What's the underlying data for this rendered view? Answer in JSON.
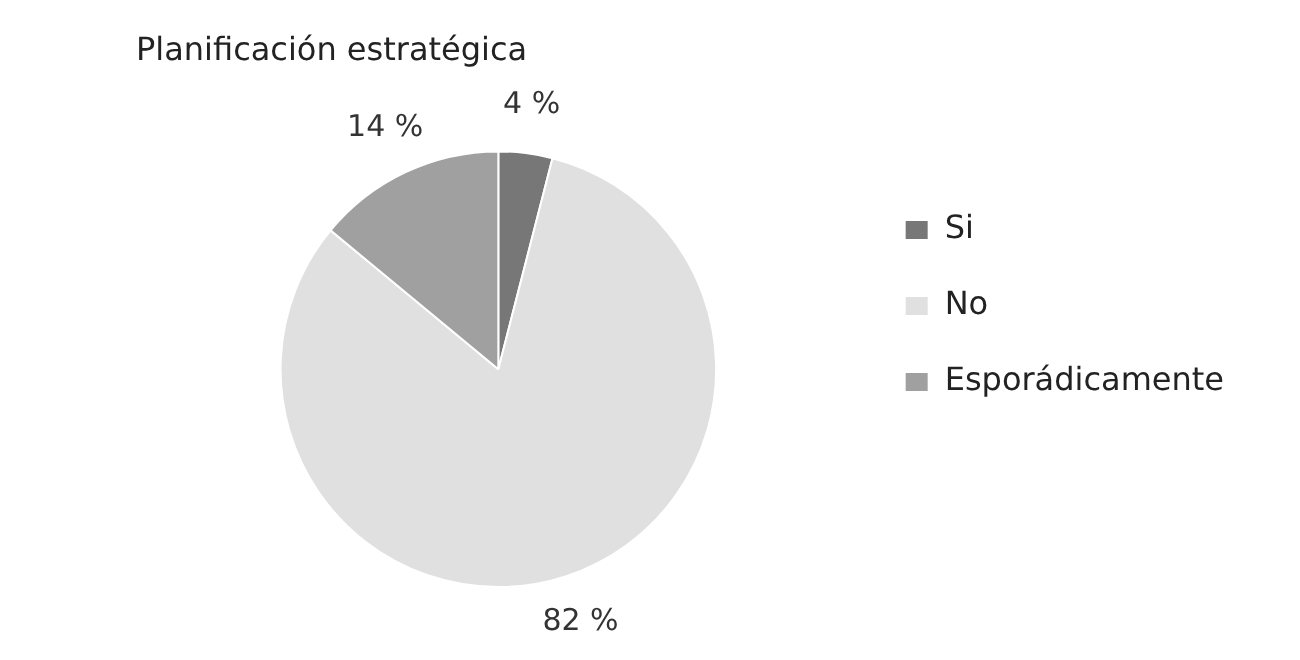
{
  "chart_data": {
    "type": "pie",
    "title": "Planificación estratégica",
    "categories": [
      "Si",
      "No",
      "Esporádicamente"
    ],
    "values": [
      4,
      82,
      14
    ],
    "colors": [
      "#777777",
      "#e0e0e0",
      "#a0a0a0"
    ],
    "value_labels": [
      "4 %",
      "82 %",
      "14 %"
    ],
    "legend": "right"
  }
}
